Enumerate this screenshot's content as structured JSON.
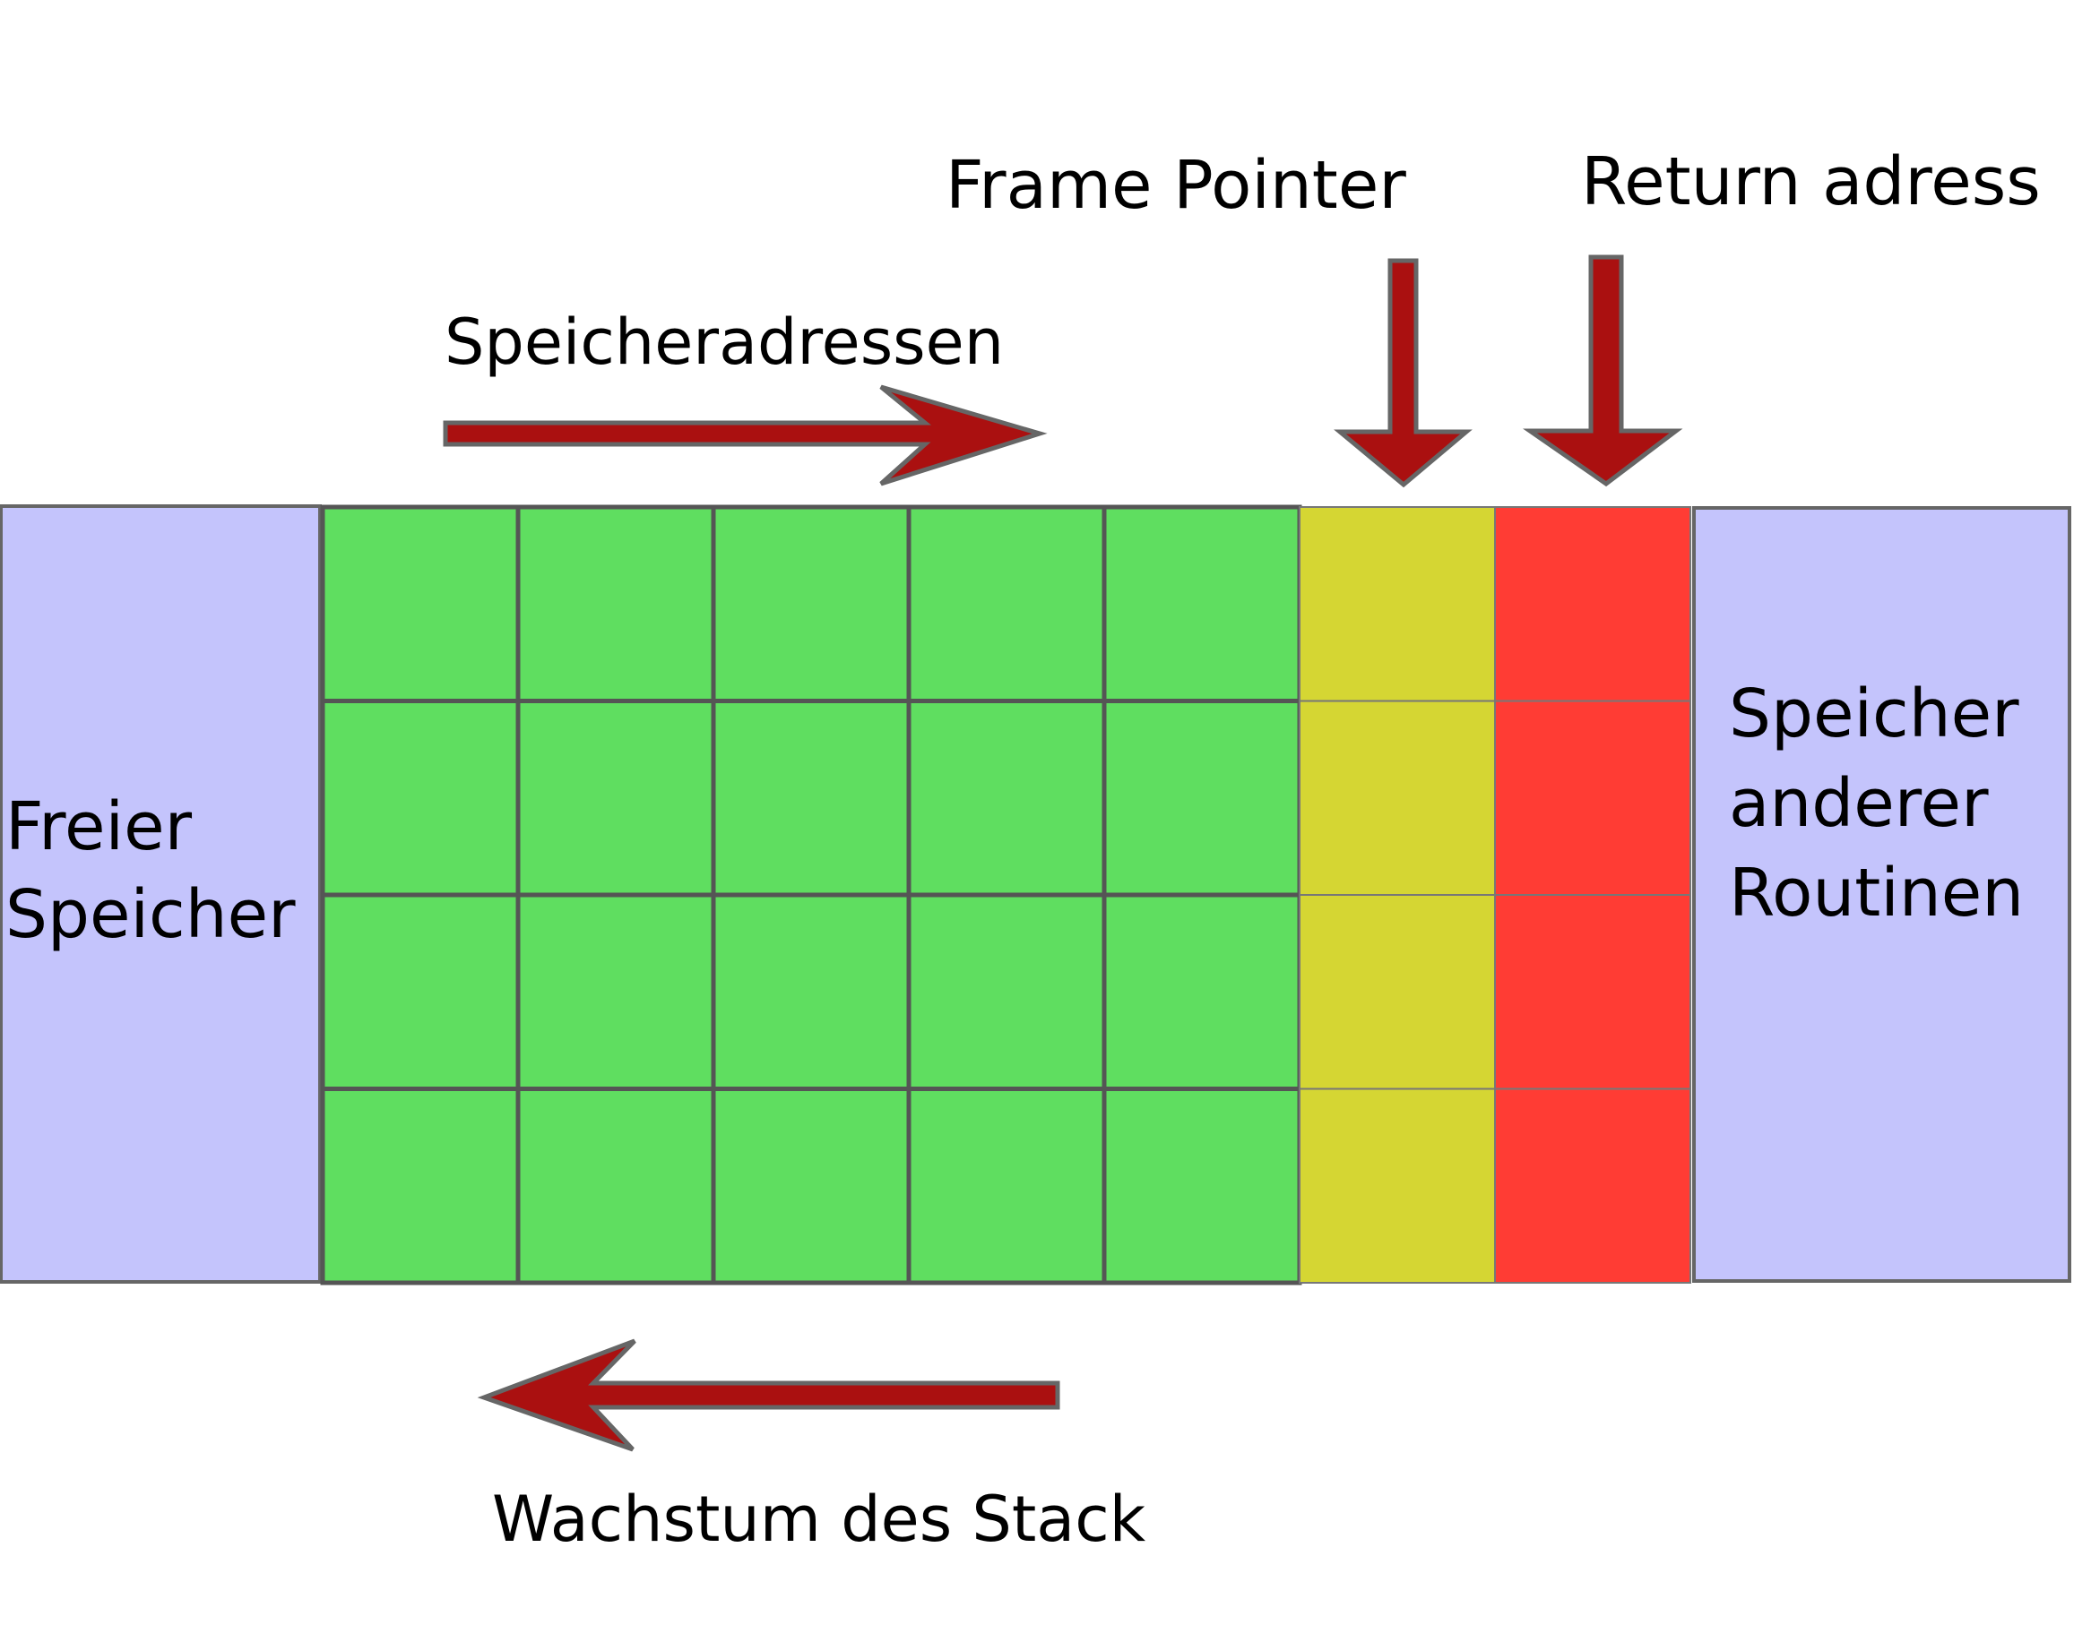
{
  "labels": {
    "frame_pointer": "Frame Pointer",
    "return_address": "Return adress",
    "memory_addresses": "Speicheradressen",
    "stack_growth": "Wachstum des Stack",
    "free_memory": [
      "Freier",
      "Speicher"
    ],
    "other_routines": [
      "Speicher",
      "anderer",
      "Routinen"
    ]
  },
  "grid": {
    "rows": 4,
    "green_columns": 5,
    "yellow_columns": 1,
    "red_columns": 1
  },
  "colors": {
    "free_region": "#c4c4fc",
    "stack_cell": "#5fde60",
    "frame_pointer_cell": "#d5d633",
    "return_address_cell": "#ff3c34",
    "arrow_fill": "#aa1010",
    "arrow_stroke": "#666666",
    "cell_border": "#555555"
  },
  "icons": {
    "memory_direction": "arrow-right-icon",
    "growth_direction": "arrow-left-icon",
    "frame_pointer": "arrow-down-icon",
    "return_address": "arrow-down-icon"
  }
}
